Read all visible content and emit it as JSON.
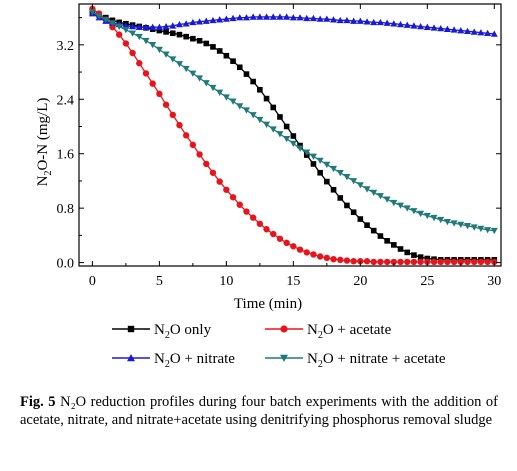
{
  "chart_data": {
    "type": "line",
    "title": "",
    "xlabel": "Time (min)",
    "ylabel": "N2O-N (mg/L)",
    "xlim": [
      -1,
      30.5
    ],
    "ylim": [
      -0.05,
      3.8
    ],
    "xticks": [
      0,
      5,
      10,
      15,
      20,
      25,
      30
    ],
    "xtick_labels": [
      "0",
      "5",
      "10",
      "15",
      "20",
      "25",
      "30"
    ],
    "yticks": [
      0.0,
      0.8,
      1.6,
      2.4,
      3.2
    ],
    "ytick_labels": [
      "0.0",
      "0.8",
      "1.6",
      "2.4",
      "3.2"
    ],
    "grid": false,
    "legend": "bottom",
    "series": [
      {
        "name": "N2O only",
        "marker": "square",
        "color": "#000000",
        "x": [
          0,
          0.5,
          1,
          1.5,
          2,
          2.5,
          3,
          3.5,
          4,
          4.5,
          5,
          5.5,
          6,
          6.5,
          7,
          7.5,
          8,
          8.5,
          9,
          9.5,
          10,
          10.5,
          11,
          11.5,
          12,
          12.5,
          13,
          13.5,
          14,
          14.5,
          15,
          15.5,
          16,
          16.5,
          17,
          17.5,
          18,
          18.5,
          19,
          19.5,
          20,
          20.5,
          21,
          21.5,
          22,
          22.5,
          23,
          23.5,
          24,
          24.5,
          25,
          25.5,
          26,
          26.5,
          27,
          27.5,
          28,
          28.5,
          29,
          29.5,
          30
        ],
        "y": [
          3.68,
          3.64,
          3.6,
          3.56,
          3.53,
          3.51,
          3.49,
          3.47,
          3.45,
          3.43,
          3.41,
          3.39,
          3.37,
          3.35,
          3.32,
          3.29,
          3.26,
          3.22,
          3.17,
          3.11,
          3.04,
          2.96,
          2.87,
          2.77,
          2.66,
          2.54,
          2.41,
          2.28,
          2.14,
          2.0,
          1.86,
          1.72,
          1.58,
          1.45,
          1.32,
          1.19,
          1.07,
          0.95,
          0.84,
          0.74,
          0.64,
          0.55,
          0.47,
          0.39,
          0.32,
          0.26,
          0.2,
          0.15,
          0.11,
          0.08,
          0.06,
          0.05,
          0.04,
          0.04,
          0.04,
          0.04,
          0.04,
          0.04,
          0.04,
          0.04,
          0.04
        ]
      },
      {
        "name": "N2O + acetate",
        "marker": "circle",
        "color": "#e8141c",
        "x": [
          0,
          0.5,
          1,
          1.5,
          2,
          2.5,
          3,
          3.5,
          4,
          4.5,
          5,
          5.5,
          6,
          6.5,
          7,
          7.5,
          8,
          8.5,
          9,
          9.5,
          10,
          10.5,
          11,
          11.5,
          12,
          12.5,
          13,
          13.5,
          14,
          14.5,
          15,
          15.5,
          16,
          16.5,
          17,
          17.5,
          18,
          18.5,
          19,
          19.5,
          20,
          20.5,
          21,
          21.5,
          22,
          22.5,
          23,
          23.5,
          24,
          24.5,
          25,
          25.5,
          26,
          26.5,
          27,
          27.5,
          28,
          28.5,
          29,
          29.5,
          30
        ],
        "y": [
          3.73,
          3.66,
          3.57,
          3.46,
          3.35,
          3.22,
          3.08,
          2.93,
          2.78,
          2.63,
          2.48,
          2.32,
          2.17,
          2.02,
          1.87,
          1.73,
          1.59,
          1.45,
          1.32,
          1.19,
          1.07,
          0.96,
          0.85,
          0.75,
          0.66,
          0.57,
          0.49,
          0.42,
          0.35,
          0.29,
          0.24,
          0.19,
          0.15,
          0.12,
          0.09,
          0.07,
          0.05,
          0.04,
          0.03,
          0.02,
          0.02,
          0.02,
          0.01,
          0.01,
          0.01,
          0.01,
          0.01,
          0.01,
          0.01,
          0.01,
          0.01,
          0.01,
          0.01,
          0.01,
          0.01,
          0.01,
          0.01,
          0.01,
          0.01,
          0.01,
          0.01
        ]
      },
      {
        "name": "N2O + nitrate",
        "marker": "triangle-up",
        "color": "#1a1ad6",
        "x": [
          0,
          0.5,
          1,
          1.5,
          2,
          2.5,
          3,
          3.5,
          4,
          4.5,
          5,
          5.5,
          6,
          6.5,
          7,
          7.5,
          8,
          8.5,
          9,
          9.5,
          10,
          10.5,
          11,
          11.5,
          12,
          12.5,
          13,
          13.5,
          14,
          14.5,
          15,
          15.5,
          16,
          16.5,
          17,
          17.5,
          18,
          18.5,
          19,
          19.5,
          20,
          20.5,
          21,
          21.5,
          22,
          22.5,
          23,
          23.5,
          24,
          24.5,
          25,
          25.5,
          26,
          26.5,
          27,
          27.5,
          28,
          28.5,
          29,
          29.5,
          30
        ],
        "y": [
          3.66,
          3.6,
          3.55,
          3.52,
          3.5,
          3.48,
          3.47,
          3.46,
          3.46,
          3.46,
          3.46,
          3.47,
          3.48,
          3.5,
          3.51,
          3.53,
          3.54,
          3.55,
          3.56,
          3.57,
          3.58,
          3.59,
          3.6,
          3.6,
          3.61,
          3.61,
          3.61,
          3.61,
          3.61,
          3.61,
          3.6,
          3.6,
          3.59,
          3.59,
          3.58,
          3.58,
          3.57,
          3.56,
          3.56,
          3.55,
          3.55,
          3.54,
          3.53,
          3.53,
          3.52,
          3.51,
          3.5,
          3.49,
          3.48,
          3.47,
          3.46,
          3.45,
          3.44,
          3.43,
          3.42,
          3.41,
          3.4,
          3.39,
          3.38,
          3.37,
          3.36
        ]
      },
      {
        "name": "N2O + nitrate + acetate",
        "marker": "triangle-down",
        "color": "#1f7a7a",
        "x": [
          0,
          0.5,
          1,
          1.5,
          2,
          2.5,
          3,
          3.5,
          4,
          4.5,
          5,
          5.5,
          6,
          6.5,
          7,
          7.5,
          8,
          8.5,
          9,
          9.5,
          10,
          10.5,
          11,
          11.5,
          12,
          12.5,
          13,
          13.5,
          14,
          14.5,
          15,
          15.5,
          16,
          16.5,
          17,
          17.5,
          18,
          18.5,
          19,
          19.5,
          20,
          20.5,
          21,
          21.5,
          22,
          22.5,
          23,
          23.5,
          24,
          24.5,
          25,
          25.5,
          26,
          26.5,
          27,
          27.5,
          28,
          28.5,
          29,
          29.5,
          30
        ],
        "y": [
          3.68,
          3.62,
          3.57,
          3.52,
          3.47,
          3.42,
          3.37,
          3.32,
          3.26,
          3.2,
          3.13,
          3.06,
          2.99,
          2.92,
          2.85,
          2.78,
          2.71,
          2.64,
          2.57,
          2.5,
          2.43,
          2.37,
          2.3,
          2.24,
          2.17,
          2.1,
          2.03,
          1.96,
          1.89,
          1.82,
          1.75,
          1.68,
          1.62,
          1.56,
          1.5,
          1.44,
          1.38,
          1.32,
          1.26,
          1.2,
          1.14,
          1.08,
          1.03,
          0.98,
          0.93,
          0.88,
          0.84,
          0.8,
          0.76,
          0.72,
          0.69,
          0.66,
          0.63,
          0.6,
          0.58,
          0.56,
          0.54,
          0.52,
          0.5,
          0.48,
          0.47
        ]
      }
    ]
  },
  "chart_text": {
    "xlabel": "Time (min)",
    "ylabel_main": "N",
    "ylabel_sub": "2",
    "ylabel_rest": "O-N (mg/L)"
  },
  "legend_items": [
    {
      "main": "N",
      "sub": "2",
      "rest": "O only"
    },
    {
      "main": "N",
      "sub": "2",
      "rest": "O + acetate"
    },
    {
      "main": "N",
      "sub": "2",
      "rest": "O + nitrate"
    },
    {
      "main": "N",
      "sub": "2",
      "rest": "O + nitrate + acetate"
    }
  ],
  "caption": {
    "label": "Fig. 5",
    "text": "N₂O reduction profiles during four batch experiments with the addition of acetate, nitrate, and nitrate+acetate using denitrifying phosphorus removal sludge"
  }
}
